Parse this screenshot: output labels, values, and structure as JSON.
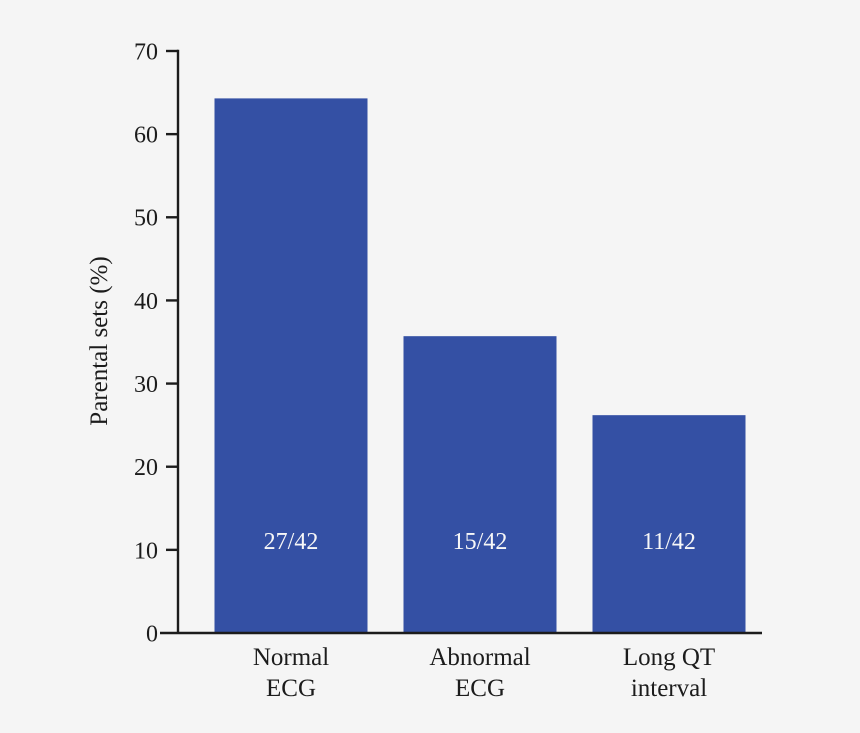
{
  "figure": {
    "background_color": "#f5f5f5",
    "bar_color": "#3450a4",
    "axis_color": "#1c1c1c",
    "text_color": "#1c1c1c",
    "bar_label_color": "#f7f7f7"
  },
  "chart_data": {
    "type": "bar",
    "title": "",
    "xlabel": "",
    "ylabel": "Parental sets (%)",
    "ylim": [
      0,
      70
    ],
    "yticks": [
      0,
      10,
      20,
      30,
      40,
      50,
      60,
      70
    ],
    "grid": false,
    "legend": null,
    "categories": [
      "Normal ECG",
      "Abnormal ECG",
      "Long QT interval"
    ],
    "category_label_lines": [
      [
        "Normal",
        "ECG"
      ],
      [
        "Abnormal",
        "ECG"
      ],
      [
        "Long QT",
        "interval"
      ]
    ],
    "values": [
      64.3,
      35.7,
      26.2
    ],
    "bar_labels": [
      "27/42",
      "15/42",
      "11/42"
    ],
    "bar_label_meaning": "count out of total parental sets"
  }
}
